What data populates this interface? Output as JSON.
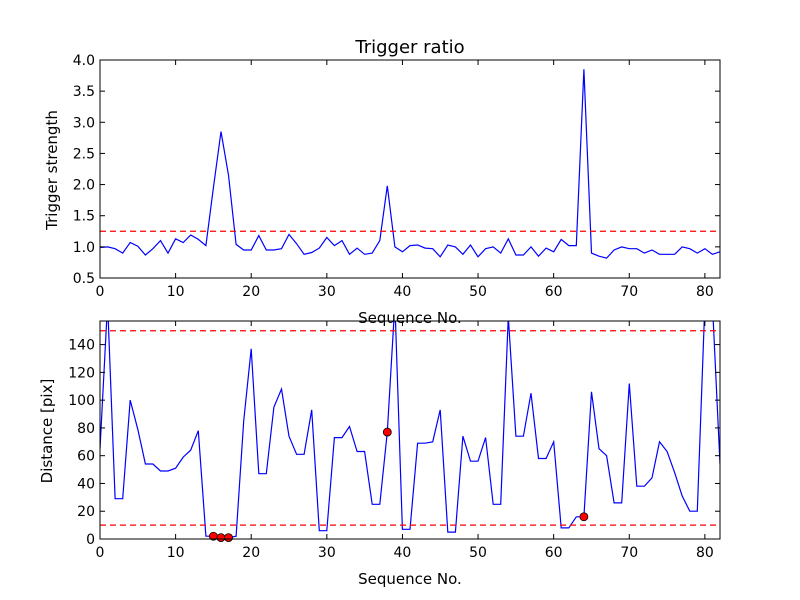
{
  "chart_data": [
    {
      "type": "line",
      "title": "Trigger ratio",
      "xlabel": "Sequence No.",
      "ylabel": "Trigger strength",
      "xlim": [
        0,
        82
      ],
      "ylim": [
        0.5,
        4.0
      ],
      "xticks": [
        0,
        10,
        20,
        30,
        40,
        50,
        60,
        70,
        80
      ],
      "xtick_labels": [
        "0",
        "10",
        "20",
        "30",
        "40",
        "50",
        "60",
        "70",
        "80"
      ],
      "yticks": [
        0.5,
        1.0,
        1.5,
        2.0,
        2.5,
        3.0,
        3.5,
        4.0
      ],
      "ytick_labels": [
        "0.5",
        "1.0",
        "1.5",
        "2.0",
        "2.5",
        "3.0",
        "3.5",
        "4.0"
      ],
      "grid": false,
      "colors": {
        "line": "#0000ff",
        "threshold": "#ff0000"
      },
      "thresholds": [
        1.25
      ],
      "series": [
        {
          "x": [
            0,
            1,
            2,
            3,
            4,
            5,
            6,
            7,
            8,
            9,
            10,
            11,
            12,
            13,
            14,
            15,
            16,
            17,
            18,
            19,
            20,
            21,
            22,
            23,
            24,
            25,
            26,
            27,
            28,
            29,
            30,
            31,
            32,
            33,
            34,
            35,
            36,
            37,
            38,
            39,
            40,
            41,
            42,
            43,
            44,
            45,
            46,
            47,
            48,
            49,
            50,
            51,
            52,
            53,
            54,
            55,
            56,
            57,
            58,
            59,
            60,
            61,
            62,
            63,
            64,
            65,
            66,
            67,
            68,
            69,
            70,
            71,
            72,
            73,
            74,
            75,
            76,
            77,
            78,
            79,
            80,
            81,
            82
          ],
          "values": [
            0.99,
            1.0,
            0.97,
            0.9,
            1.07,
            1.01,
            0.87,
            0.97,
            1.1,
            0.9,
            1.13,
            1.07,
            1.19,
            1.12,
            1.02,
            1.95,
            2.85,
            2.15,
            1.04,
            0.95,
            0.95,
            1.18,
            0.95,
            0.95,
            0.97,
            1.2,
            1.05,
            0.88,
            0.91,
            0.98,
            1.15,
            1.02,
            1.1,
            0.88,
            0.98,
            0.88,
            0.9,
            1.1,
            1.98,
            1.0,
            0.92,
            1.02,
            1.03,
            0.98,
            0.97,
            0.84,
            1.03,
            1.0,
            0.88,
            1.03,
            0.84,
            0.97,
            1.0,
            0.9,
            1.13,
            0.87,
            0.87,
            1.0,
            0.85,
            0.98,
            0.92,
            1.12,
            1.02,
            1.02,
            3.85,
            0.9,
            0.85,
            0.82,
            0.95,
            1.0,
            0.97,
            0.97,
            0.9,
            0.95,
            0.88,
            0.88,
            0.88,
            1.0,
            0.97,
            0.9,
            0.97,
            0.88,
            0.92
          ]
        }
      ]
    },
    {
      "type": "line",
      "title": "",
      "xlabel": "Sequence No.",
      "ylabel": "Distance [pix]",
      "xlim": [
        0,
        82
      ],
      "ylim": [
        0,
        157
      ],
      "xticks": [
        0,
        10,
        20,
        30,
        40,
        50,
        60,
        70,
        80
      ],
      "xtick_labels": [
        "0",
        "10",
        "20",
        "30",
        "40",
        "50",
        "60",
        "70",
        "80"
      ],
      "yticks": [
        0,
        20,
        40,
        60,
        80,
        100,
        120,
        140
      ],
      "ytick_labels": [
        "0",
        "20",
        "40",
        "60",
        "80",
        "100",
        "120",
        "140"
      ],
      "grid": false,
      "colors": {
        "line": "#0000ff",
        "threshold": "#ff0000",
        "marker": "#ff0000"
      },
      "thresholds": [
        150,
        10
      ],
      "series": [
        {
          "x": [
            0,
            1,
            2,
            3,
            4,
            5,
            6,
            7,
            8,
            9,
            10,
            11,
            12,
            13,
            14,
            15,
            16,
            17,
            18,
            19,
            20,
            21,
            22,
            23,
            24,
            25,
            26,
            27,
            28,
            29,
            30,
            31,
            32,
            33,
            34,
            35,
            36,
            37,
            38,
            39,
            40,
            41,
            42,
            43,
            44,
            45,
            46,
            47,
            48,
            49,
            50,
            51,
            52,
            53,
            54,
            55,
            56,
            57,
            58,
            59,
            60,
            61,
            62,
            63,
            64,
            65,
            66,
            67,
            68,
            69,
            70,
            71,
            72,
            73,
            74,
            75,
            76,
            77,
            78,
            79,
            80,
            81,
            82
          ],
          "values": [
            65,
            170,
            29,
            29,
            100,
            79,
            54,
            54,
            49,
            49,
            51,
            59,
            64,
            78,
            2,
            2,
            1,
            1,
            2,
            85,
            137,
            47,
            47,
            95,
            108,
            74,
            61,
            61,
            93,
            6,
            6,
            73,
            73,
            81,
            63,
            63,
            25,
            25,
            77,
            170,
            7,
            7,
            69,
            69,
            70,
            93,
            5,
            5,
            74,
            56,
            56,
            73,
            25,
            25,
            160,
            74,
            74,
            105,
            58,
            58,
            70,
            8,
            8,
            16,
            16,
            106,
            65,
            60,
            26,
            26,
            112,
            38,
            38,
            44,
            70,
            63,
            48,
            31,
            20,
            20,
            170,
            170,
            54
          ]
        }
      ],
      "markers": {
        "x": [
          15,
          16,
          17,
          38,
          64
        ],
        "values": [
          2,
          1,
          1,
          77,
          16
        ]
      }
    }
  ]
}
